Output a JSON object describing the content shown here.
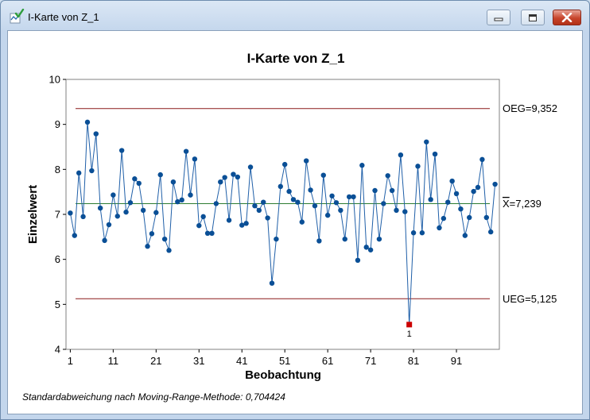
{
  "window": {
    "title": "I-Karte von Z_1",
    "icons": {
      "app": "minitab-chart-icon",
      "minimize": "minimize-icon",
      "maximize": "maximize-icon",
      "close": "close-icon"
    }
  },
  "chart_data": {
    "type": "line",
    "title": "I-Karte von Z_1",
    "xlabel": "Beobachtung",
    "ylabel": "Einzelwert",
    "xlim": [
      0,
      101
    ],
    "ylim": [
      4,
      10
    ],
    "xticks": [
      1,
      11,
      21,
      31,
      41,
      51,
      61,
      71,
      81,
      91
    ],
    "yticks": [
      4,
      5,
      6,
      7,
      8,
      9,
      10
    ],
    "x": [
      1,
      2,
      3,
      4,
      5,
      6,
      7,
      8,
      9,
      10,
      11,
      12,
      13,
      14,
      15,
      16,
      17,
      18,
      19,
      20,
      21,
      22,
      23,
      24,
      25,
      26,
      27,
      28,
      29,
      30,
      31,
      32,
      33,
      34,
      35,
      36,
      37,
      38,
      39,
      40,
      41,
      42,
      43,
      44,
      45,
      46,
      47,
      48,
      49,
      50,
      51,
      52,
      53,
      54,
      55,
      56,
      57,
      58,
      59,
      60,
      61,
      62,
      63,
      64,
      65,
      66,
      67,
      68,
      69,
      70,
      71,
      72,
      73,
      74,
      75,
      76,
      77,
      78,
      79,
      80,
      81,
      82,
      83,
      84,
      85,
      86,
      87,
      88,
      89,
      90,
      91,
      92,
      93,
      94,
      95,
      96,
      97,
      98,
      99,
      100
    ],
    "series": [
      {
        "values": [
          7.03,
          6.53,
          7.92,
          6.95,
          9.05,
          7.97,
          8.79,
          7.14,
          6.42,
          6.77,
          7.43,
          6.96,
          8.42,
          7.05,
          7.26,
          7.79,
          7.69,
          7.09,
          6.29,
          6.57,
          7.04,
          7.88,
          6.45,
          6.2,
          7.72,
          7.28,
          7.32,
          8.4,
          7.43,
          8.23,
          6.75,
          6.95,
          6.58,
          6.58,
          7.24,
          7.72,
          7.82,
          6.87,
          7.89,
          7.83,
          6.76,
          6.8,
          8.05,
          7.19,
          7.09,
          7.27,
          6.92,
          5.47,
          6.45,
          7.62,
          8.11,
          7.51,
          7.33,
          7.27,
          6.83,
          8.19,
          7.54,
          7.19,
          6.41,
          7.87,
          6.98,
          7.41,
          7.26,
          7.09,
          6.45,
          7.39,
          7.39,
          5.98,
          8.09,
          6.27,
          6.21,
          7.53,
          6.45,
          7.24,
          7.86,
          7.53,
          7.09,
          8.32,
          7.06,
          4.55,
          6.59,
          8.07,
          6.59,
          8.61,
          7.33,
          8.34,
          6.7,
          6.91,
          7.27,
          7.74,
          7.46,
          7.12,
          6.53,
          6.93,
          7.51,
          7.6,
          8.22,
          6.93,
          6.61,
          7.67
        ]
      }
    ],
    "control_limits": {
      "ucl": {
        "value": 9.352,
        "label": "OEG=9,352",
        "color": "#8b1a1a"
      },
      "center": {
        "value": 7.239,
        "symbol": "X",
        "label": "=7,239",
        "color": "#2e7d32"
      },
      "lcl": {
        "value": 5.125,
        "label": "UEG=5,125",
        "color": "#8b1a1a"
      }
    },
    "out_of_control": [
      {
        "x": 80,
        "value": 4.55,
        "label": "1",
        "color": "#cc0000"
      }
    ],
    "line_color": "#1f5fa8",
    "point_color": "#0a4f96",
    "grid": false,
    "legend": "none"
  },
  "footnote": "Standardabweichung nach Moving-Range-Methode: 0,704424"
}
